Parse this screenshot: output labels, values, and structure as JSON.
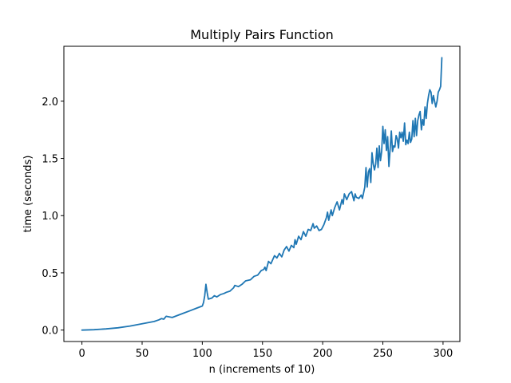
{
  "chart_data": {
    "type": "line",
    "title": "Multiply Pairs Function",
    "xlabel": "n (increments of 10)",
    "ylabel": "time (seconds)",
    "xlim": [
      -15,
      314
    ],
    "ylim": [
      -0.1,
      2.48
    ],
    "xticks": [
      0,
      50,
      100,
      150,
      200,
      250,
      300
    ],
    "yticks": [
      0.0,
      0.5,
      1.0,
      1.5,
      2.0
    ],
    "xtick_labels": [
      "0",
      "50",
      "100",
      "150",
      "200",
      "250",
      "300"
    ],
    "ytick_labels": [
      "0.0",
      "0.5",
      "1.0",
      "1.5",
      "2.0"
    ],
    "grid": false,
    "series": [
      {
        "color": "#1f77b4",
        "x": [
          0,
          10,
          20,
          30,
          40,
          50,
          60,
          64,
          66,
          68,
          70,
          75,
          80,
          85,
          90,
          95,
          100,
          101,
          102,
          103,
          104,
          105,
          108,
          110,
          112,
          115,
          118,
          120,
          123,
          126,
          127,
          130,
          133,
          136,
          140,
          143,
          146,
          149,
          151,
          152,
          153,
          155,
          157,
          160,
          162,
          164,
          166,
          168,
          170,
          172,
          174,
          176,
          177,
          178,
          180,
          182,
          184,
          186,
          188,
          190,
          192,
          193,
          195,
          197,
          199,
          201,
          203,
          204,
          205,
          207,
          208,
          210,
          212,
          214,
          216,
          217,
          218,
          220,
          222,
          224,
          226,
          227,
          228,
          230,
          232,
          233,
          234,
          235,
          236,
          237,
          238,
          239,
          240,
          241,
          242,
          243,
          244,
          245,
          246,
          247,
          248,
          249,
          250,
          251,
          252,
          253,
          254,
          255,
          256,
          257,
          258,
          259,
          260,
          261,
          262,
          263,
          264,
          265,
          266,
          267,
          268,
          269,
          270,
          271,
          272,
          273,
          274,
          275,
          276,
          277,
          278,
          279,
          280,
          281,
          282,
          283,
          284,
          285,
          286,
          287,
          288,
          289,
          290,
          291,
          292,
          293,
          294,
          295,
          296,
          297,
          298,
          299
        ],
        "y": [
          0.0,
          0.003,
          0.01,
          0.02,
          0.035,
          0.055,
          0.075,
          0.09,
          0.1,
          0.095,
          0.12,
          0.11,
          0.13,
          0.15,
          0.17,
          0.19,
          0.21,
          0.24,
          0.3,
          0.4,
          0.33,
          0.27,
          0.28,
          0.3,
          0.29,
          0.31,
          0.32,
          0.33,
          0.34,
          0.37,
          0.39,
          0.38,
          0.4,
          0.43,
          0.44,
          0.47,
          0.48,
          0.52,
          0.53,
          0.55,
          0.52,
          0.6,
          0.58,
          0.65,
          0.63,
          0.67,
          0.64,
          0.7,
          0.73,
          0.69,
          0.74,
          0.72,
          0.79,
          0.75,
          0.82,
          0.79,
          0.86,
          0.82,
          0.88,
          0.87,
          0.93,
          0.89,
          0.91,
          0.87,
          0.88,
          0.92,
          0.98,
          1.03,
          0.96,
          1.05,
          1.0,
          1.07,
          1.12,
          1.05,
          1.14,
          1.1,
          1.19,
          1.14,
          1.19,
          1.21,
          1.13,
          1.19,
          1.16,
          1.15,
          1.18,
          1.15,
          1.2,
          1.25,
          1.42,
          1.25,
          1.38,
          1.41,
          1.29,
          1.55,
          1.45,
          1.4,
          1.45,
          1.59,
          1.42,
          1.61,
          1.48,
          1.56,
          1.78,
          1.63,
          1.75,
          1.57,
          1.69,
          1.43,
          1.58,
          1.74,
          1.56,
          1.61,
          1.6,
          1.7,
          1.67,
          1.59,
          1.73,
          1.68,
          1.73,
          1.65,
          1.81,
          1.62,
          1.66,
          1.63,
          1.73,
          1.64,
          1.67,
          1.83,
          1.69,
          1.85,
          1.7,
          1.83,
          1.88,
          1.91,
          1.75,
          1.84,
          1.79,
          1.95,
          1.85,
          1.98,
          2.05,
          2.1,
          2.08,
          1.98,
          2.05,
          2.0,
          1.95,
          2.0,
          2.08,
          2.1,
          2.13,
          2.38
        ]
      }
    ]
  }
}
